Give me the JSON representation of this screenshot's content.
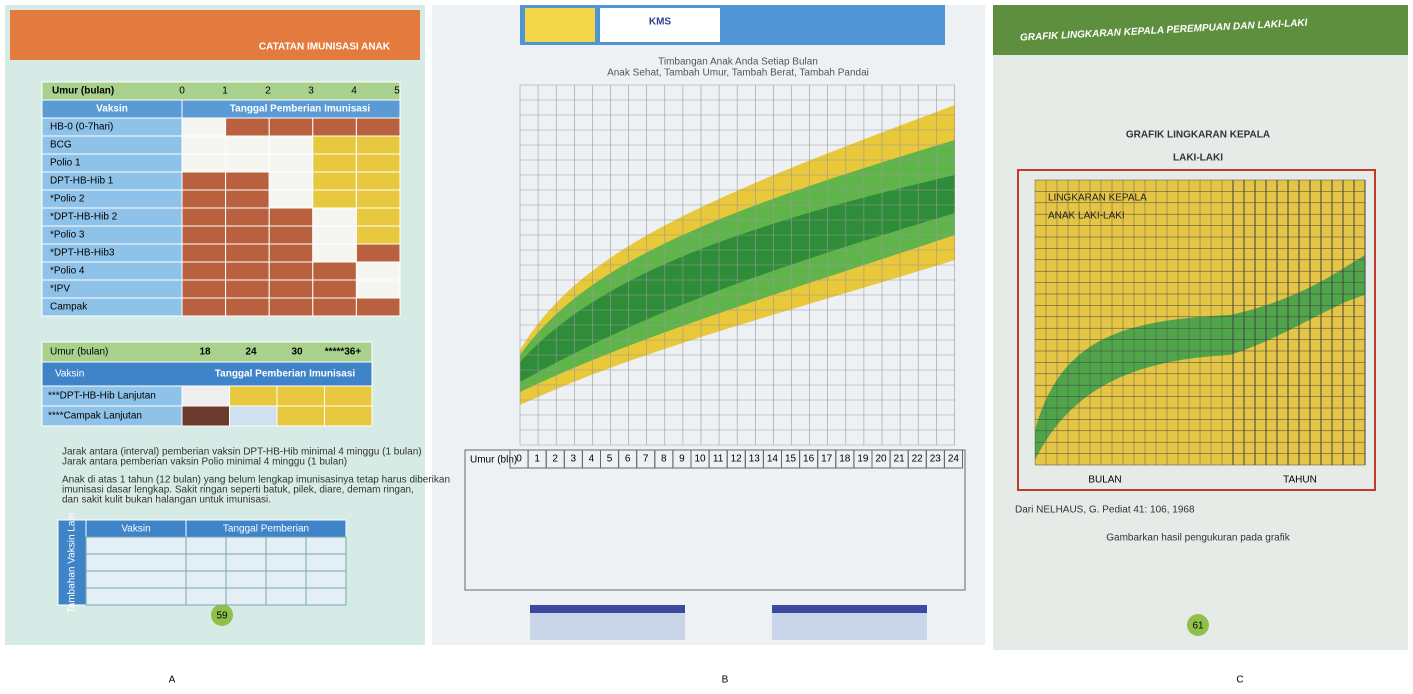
{
  "panels": [
    {
      "label": "A",
      "title": "CATATAN IMUNISASI ANAK",
      "table1": {
        "age_label": "Umur (bulan)",
        "ages": [
          "0",
          "1",
          "2",
          "3",
          "4",
          "5"
        ],
        "col_vaccine": "Vaksin",
        "col_date": "Tanggal Pemberian Imunisasi",
        "rows": [
          "HB-0 (0-7hari)",
          "BCG",
          "Polio 1",
          "DPT-HB-Hib 1",
          "*Polio 2",
          "*DPT-HB-Hib 2",
          "*Polio 3",
          "*DPT-HB-Hib3",
          "*Polio 4",
          "*IPV",
          "Campak"
        ]
      },
      "table2": {
        "age_label": "Umur (bulan)",
        "ages": [
          "18",
          "24",
          "30",
          "*****36+"
        ],
        "col_vaccine": "Vaksin",
        "col_date": "Tanggal Pemberian Imunisasi",
        "rows": [
          "***DPT-HB-Hib Lanjutan",
          "****Campak Lanjutan"
        ]
      },
      "notes": [
        "Jarak antara (interval) pemberian vaksin DPT-HB-Hib minimal 4 minggu (1 bulan)",
        "Jarak antara pemberian vaksin Polio minimal 4 minggu (1 bulan)",
        "Anak di atas 1 tahun (12 bulan) yang belum lengkap imunisasinya tetap harus diberikan",
        "imunisasi dasar lengkap. Sakit ringan seperti batuk, pilek, diare, demam ringan,",
        "dan sakit kulit bukan halangan untuk imunisasi."
      ],
      "table3": {
        "side": "Tambahan Vaksin Lain",
        "col_vaccine": "Vaksin",
        "col_date": "Tanggal Pemberian"
      },
      "page": "59"
    },
    {
      "label": "B",
      "logo": "KMS",
      "subtitle": [
        "Timbangan Anak Anda Setiap Bulan",
        "Anak Sehat, Tambah Umur, Tambah Berat, Tambah Pandai"
      ],
      "age_label": "Umur (bln)",
      "ages": [
        "0",
        "1",
        "2",
        "3",
        "4",
        "5",
        "6",
        "7",
        "8",
        "9",
        "10",
        "11",
        "12",
        "13",
        "14",
        "15",
        "16",
        "17",
        "18",
        "19",
        "20",
        "21",
        "22",
        "23",
        "24"
      ]
    },
    {
      "label": "C",
      "banner": "GRAFIK LINGKARAN KEPALA PEREMPUAN DAN LAKI-LAKI",
      "title": "GRAFIK LINGKARAN KEPALA",
      "subtitle": "LAKI-LAKI",
      "chart_label": [
        "LINGKARAN KEPALA",
        "ANAK LAKI-LAKI"
      ],
      "x_label_left": "BULAN",
      "x_label_right": "TAHUN",
      "source": "Dari NELHAUS, G. Pediat 41: 106, 1968",
      "footer": "Gambarkan hasil pengukuran pada grafik",
      "page": "61"
    }
  ]
}
